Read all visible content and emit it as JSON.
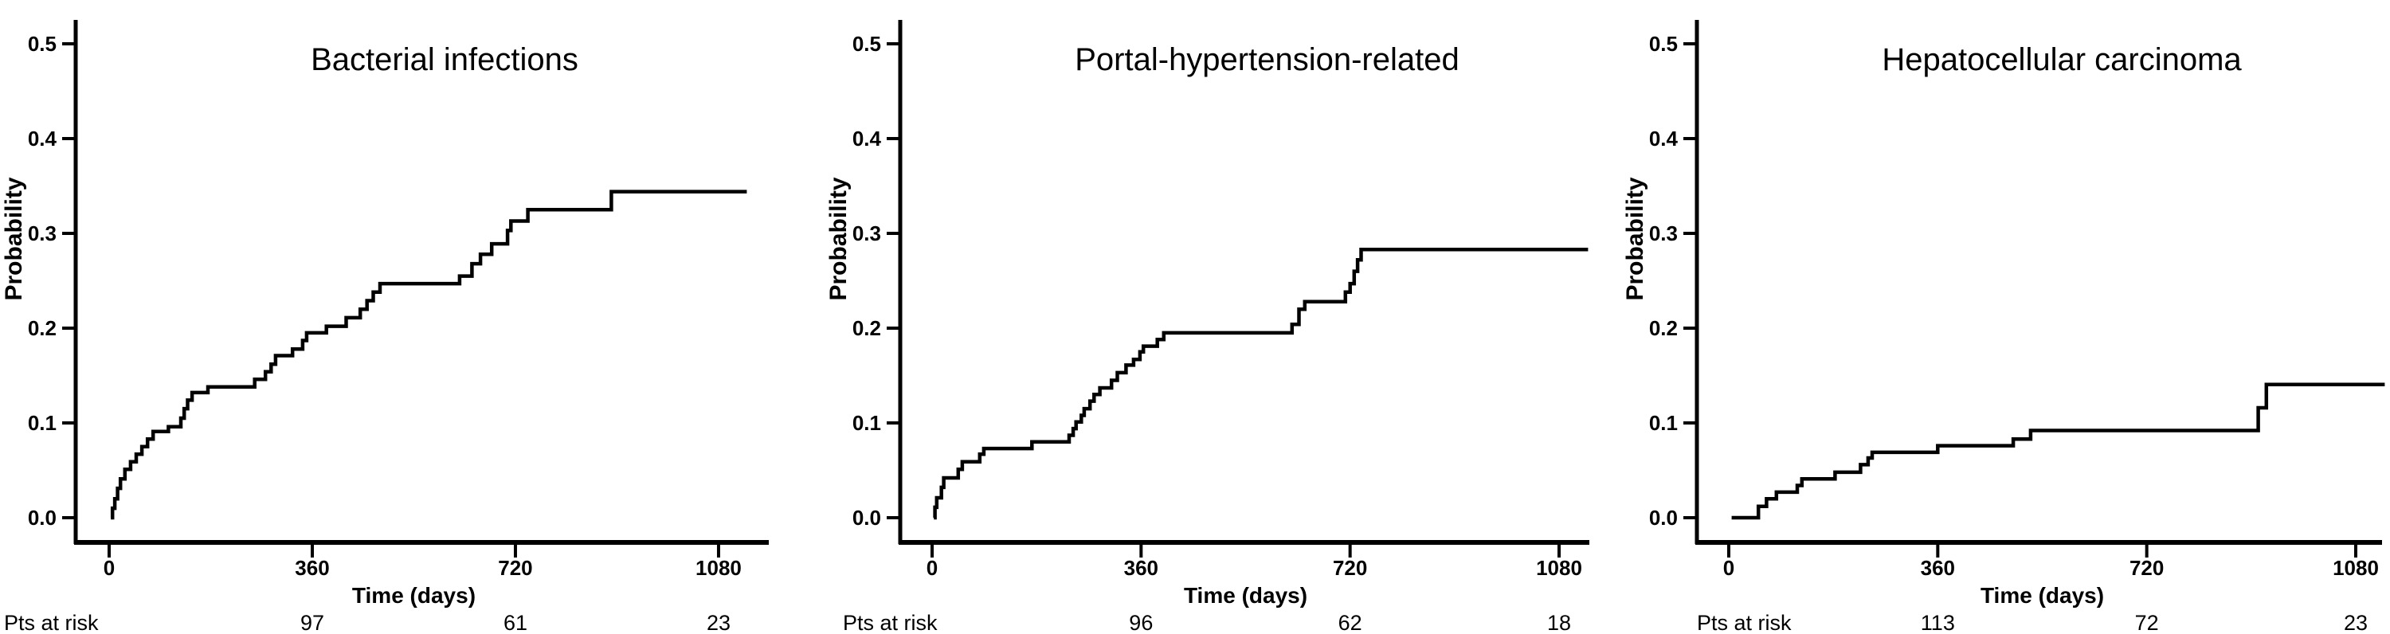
{
  "figure": {
    "background": "#ffffff",
    "ink_color": "#000000"
  },
  "chart_data": [
    {
      "type": "line",
      "subtype": "kaplan-meier-cumulative-incidence-step",
      "title": "Bacterial infections",
      "xlabel": "Time (days)",
      "ylabel": "Probability",
      "xtick_values": [
        0,
        360,
        720,
        1080
      ],
      "xtick_labels": [
        "0",
        "360",
        "720",
        "1080"
      ],
      "ytick_values": [
        0.0,
        0.1,
        0.2,
        0.3,
        0.4,
        0.5
      ],
      "ytick_labels": [
        "0.0",
        "0.1",
        "0.2",
        "0.3",
        "0.4",
        "0.5"
      ],
      "xlim": [
        0,
        1130
      ],
      "ylim": [
        0,
        0.5
      ],
      "grid": false,
      "legend": "none",
      "steps": [
        [
          3,
          0
        ],
        [
          6,
          0.01
        ],
        [
          10,
          0.02
        ],
        [
          15,
          0.031
        ],
        [
          20,
          0.041
        ],
        [
          28,
          0.051
        ],
        [
          38,
          0.059
        ],
        [
          48,
          0.067
        ],
        [
          58,
          0.075
        ],
        [
          68,
          0.083
        ],
        [
          78,
          0.091
        ],
        [
          105,
          0.096
        ],
        [
          127,
          0.105
        ],
        [
          133,
          0.115
        ],
        [
          139,
          0.124
        ],
        [
          147,
          0.132
        ],
        [
          175,
          0.138
        ],
        [
          258,
          0.146
        ],
        [
          277,
          0.154
        ],
        [
          287,
          0.162
        ],
        [
          295,
          0.171
        ],
        [
          325,
          0.178
        ],
        [
          343,
          0.187
        ],
        [
          350,
          0.195
        ],
        [
          385,
          0.202
        ],
        [
          420,
          0.211
        ],
        [
          445,
          0.22
        ],
        [
          457,
          0.229
        ],
        [
          468,
          0.238
        ],
        [
          480,
          0.247
        ],
        [
          621,
          0.255
        ],
        [
          643,
          0.268
        ],
        [
          658,
          0.278
        ],
        [
          678,
          0.289
        ],
        [
          706,
          0.303
        ],
        [
          712,
          0.313
        ],
        [
          742,
          0.325
        ],
        [
          890,
          0.344
        ]
      ],
      "end_time": 1130,
      "pts_at_risk": {
        "label": "Pts at risk",
        "times": [
          360,
          720,
          1080
        ],
        "counts": [
          "97",
          "61",
          "23"
        ]
      }
    },
    {
      "type": "line",
      "subtype": "kaplan-meier-cumulative-incidence-step",
      "title": "Portal-hypertension-related",
      "xlabel": "Time (days)",
      "ylabel": "Probability",
      "xtick_values": [
        0,
        360,
        720,
        1080
      ],
      "xtick_labels": [
        "0",
        "360",
        "720",
        "1080"
      ],
      "ytick_values": [
        0.0,
        0.1,
        0.2,
        0.3,
        0.4,
        0.5
      ],
      "ytick_labels": [
        "0.0",
        "0.1",
        "0.2",
        "0.3",
        "0.4",
        "0.5"
      ],
      "xlim": [
        0,
        1130
      ],
      "ylim": [
        0,
        0.5
      ],
      "grid": false,
      "legend": "none",
      "steps": [
        [
          3,
          0
        ],
        [
          5,
          0.011
        ],
        [
          8,
          0.021
        ],
        [
          16,
          0.032
        ],
        [
          20,
          0.042
        ],
        [
          45,
          0.051
        ],
        [
          52,
          0.059
        ],
        [
          82,
          0.067
        ],
        [
          89,
          0.073
        ],
        [
          172,
          0.08
        ],
        [
          236,
          0.087
        ],
        [
          243,
          0.094
        ],
        [
          248,
          0.101
        ],
        [
          257,
          0.108
        ],
        [
          262,
          0.115
        ],
        [
          272,
          0.123
        ],
        [
          279,
          0.13
        ],
        [
          289,
          0.137
        ],
        [
          309,
          0.145
        ],
        [
          319,
          0.153
        ],
        [
          334,
          0.161
        ],
        [
          347,
          0.167
        ],
        [
          358,
          0.175
        ],
        [
          364,
          0.181
        ],
        [
          388,
          0.188
        ],
        [
          399,
          0.195
        ],
        [
          620,
          0.204
        ],
        [
          632,
          0.22
        ],
        [
          642,
          0.228
        ],
        [
          712,
          0.238
        ],
        [
          720,
          0.247
        ],
        [
          727,
          0.26
        ],
        [
          733,
          0.272
        ],
        [
          739,
          0.283
        ]
      ],
      "end_time": 1130,
      "pts_at_risk": {
        "label": "Pts at risk",
        "times": [
          360,
          720,
          1080
        ],
        "counts": [
          "96",
          "62",
          "18"
        ]
      }
    },
    {
      "type": "line",
      "subtype": "kaplan-meier-cumulative-incidence-step",
      "title": "Hepatocellular carcinoma",
      "xlabel": "Time (days)",
      "ylabel": "Probability",
      "xtick_values": [
        0,
        360,
        720,
        1080
      ],
      "xtick_labels": [
        "0",
        "360",
        "720",
        "1080"
      ],
      "ytick_values": [
        0.0,
        0.1,
        0.2,
        0.3,
        0.4,
        0.5
      ],
      "ytick_labels": [
        "0.0",
        "0.1",
        "0.2",
        "0.3",
        "0.4",
        "0.5"
      ],
      "xlim": [
        0,
        1130
      ],
      "ylim": [
        0,
        0.5
      ],
      "grid": false,
      "legend": "none",
      "steps": [
        [
          5,
          0
        ],
        [
          51,
          0.012
        ],
        [
          65,
          0.02
        ],
        [
          82,
          0.027
        ],
        [
          118,
          0.034
        ],
        [
          126,
          0.041
        ],
        [
          183,
          0.048
        ],
        [
          227,
          0.056
        ],
        [
          240,
          0.063
        ],
        [
          247,
          0.069
        ],
        [
          360,
          0.076
        ],
        [
          490,
          0.083
        ],
        [
          520,
          0.092
        ],
        [
          912,
          0.116
        ],
        [
          926,
          0.1405
        ]
      ],
      "end_time": 1130,
      "pts_at_risk": {
        "label": "Pts at risk",
        "times": [
          360,
          720,
          1080
        ],
        "counts": [
          "113",
          "72",
          "23"
        ]
      }
    }
  ]
}
